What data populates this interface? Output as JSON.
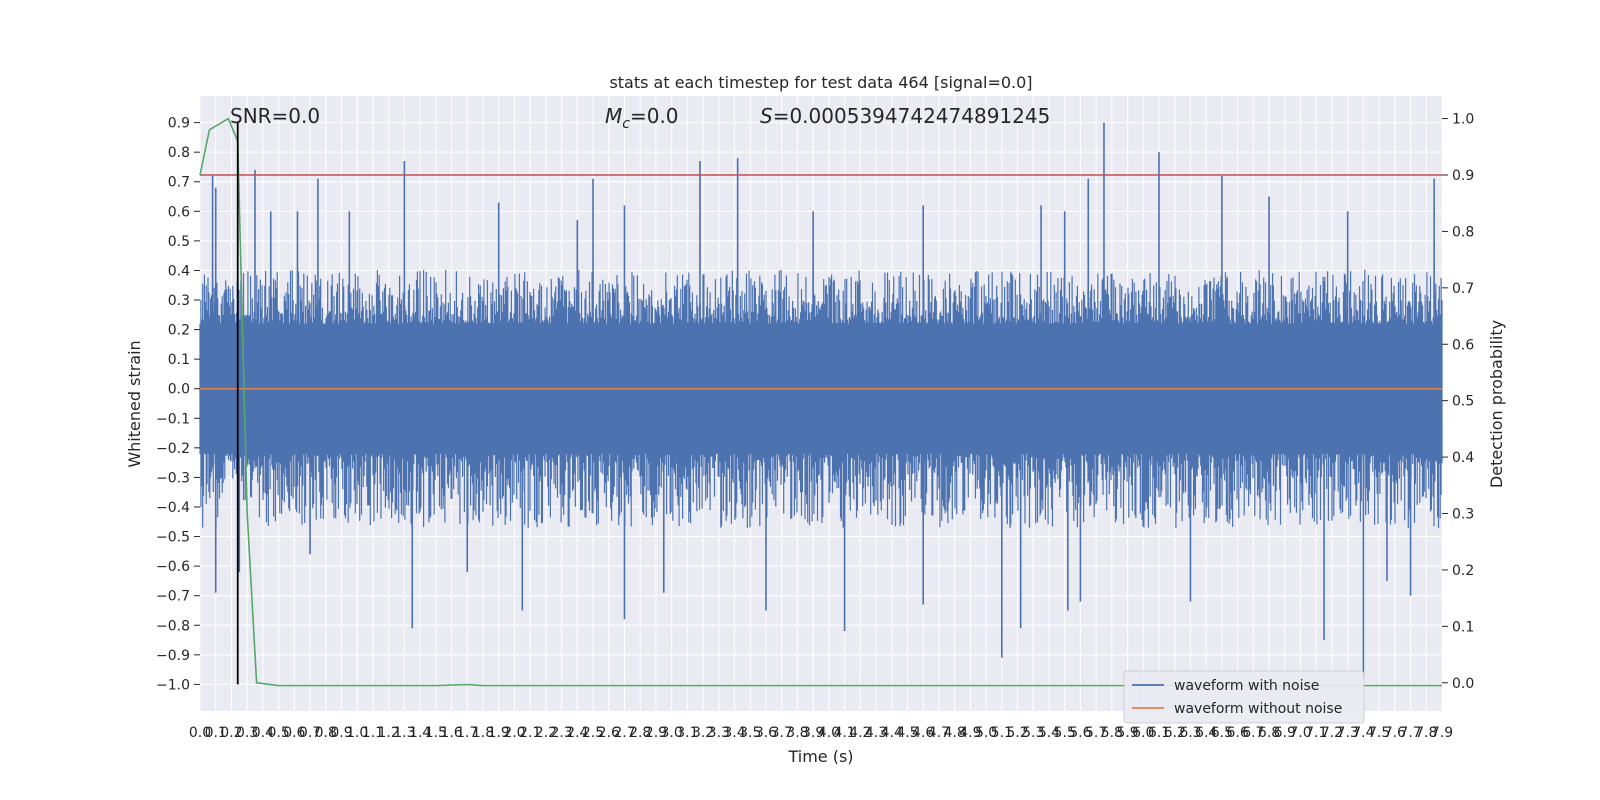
{
  "chart_data": {
    "type": "line",
    "title": "stats at each timestep for test data 464 [signal=0.0]",
    "xlabel": "Time (s)",
    "ylabel": "Whitened strain",
    "y2label": "Detection probability",
    "xlim": [
      0.0,
      7.9
    ],
    "ylim": [
      -1.09,
      0.99
    ],
    "y2lim": [
      -0.05,
      1.04
    ],
    "x_ticks": [
      0.0,
      0.1,
      0.2,
      0.3,
      0.4,
      0.5,
      0.6,
      0.7,
      0.8,
      0.9,
      1.0,
      1.1,
      1.2,
      1.3,
      1.4,
      1.5,
      1.6,
      1.7,
      1.8,
      1.9,
      2.0,
      2.1,
      2.2,
      2.3,
      2.4,
      2.5,
      2.6,
      2.7,
      2.8,
      2.9,
      3.0,
      3.1,
      3.2,
      3.3,
      3.4,
      3.5,
      3.6,
      3.7,
      3.8,
      3.9,
      4.0,
      4.1,
      4.2,
      4.3,
      4.4,
      4.5,
      4.6,
      4.7,
      4.8,
      4.9,
      5.0,
      5.1,
      5.2,
      5.3,
      5.4,
      5.5,
      5.6,
      5.7,
      5.8,
      5.9,
      6.0,
      6.1,
      6.2,
      6.3,
      6.4,
      6.5,
      6.6,
      6.7,
      6.8,
      6.9,
      7.0,
      7.1,
      7.2,
      7.3,
      7.4,
      7.5,
      7.6,
      7.7,
      7.8,
      7.9
    ],
    "y_ticks": [
      0.9,
      0.8,
      0.7,
      0.6,
      0.5,
      0.4,
      0.3,
      0.2,
      0.1,
      0.0,
      -0.1,
      -0.2,
      -0.3,
      -0.4,
      -0.5,
      -0.6,
      -0.7,
      -0.8,
      -0.9,
      -1.0
    ],
    "y2_ticks": [
      1.0,
      0.9,
      0.8,
      0.7,
      0.6,
      0.5,
      0.4,
      0.3,
      0.2,
      0.1,
      0.0
    ],
    "grid": true,
    "legend_position": "bottom-right",
    "series": [
      {
        "name": "waveform with noise",
        "color": "#4c72b0",
        "axis": "left",
        "core_amplitude": 0.22,
        "typical_peak": [
          0.35,
          -0.4
        ]
      },
      {
        "name": "waveform without noise",
        "color": "#dd8452",
        "axis": "left",
        "x": [
          0.0,
          7.9
        ],
        "y": [
          0.0,
          0.0
        ]
      },
      {
        "color": "#55a868",
        "axis": "right",
        "x": [
          0.0,
          0.06,
          0.12,
          0.18,
          0.24,
          0.3,
          0.36,
          0.5,
          1.0,
          1.5,
          1.7,
          1.8,
          2.5,
          3.5,
          4.5,
          5.5,
          6.5,
          7.5,
          7.9
        ],
        "y": [
          0.9,
          0.98,
          0.99,
          1.0,
          0.96,
          0.3,
          0.0,
          -0.005,
          -0.005,
          -0.005,
          -0.003,
          -0.005,
          -0.005,
          -0.005,
          -0.005,
          -0.005,
          -0.005,
          -0.005,
          -0.005
        ]
      }
    ],
    "threshold": {
      "value": 0.9,
      "axis": "right",
      "color": "#c44e52"
    },
    "marker_x": {
      "value": 0.24,
      "color": "#000000"
    },
    "spikes_up": [
      [
        0.08,
        0.72
      ],
      [
        0.1,
        0.68
      ],
      [
        0.35,
        0.74
      ],
      [
        0.45,
        0.6
      ],
      [
        0.62,
        0.6
      ],
      [
        0.75,
        0.71
      ],
      [
        0.95,
        0.6
      ],
      [
        1.3,
        0.77
      ],
      [
        1.9,
        0.63
      ],
      [
        2.4,
        0.57
      ],
      [
        2.5,
        0.71
      ],
      [
        2.7,
        0.62
      ],
      [
        3.18,
        0.77
      ],
      [
        3.42,
        0.78
      ],
      [
        3.9,
        0.6
      ],
      [
        4.6,
        0.62
      ],
      [
        5.35,
        0.62
      ],
      [
        5.5,
        0.6
      ],
      [
        5.65,
        0.71
      ],
      [
        5.75,
        0.9
      ],
      [
        6.1,
        0.8
      ],
      [
        6.5,
        0.72
      ],
      [
        6.8,
        0.65
      ],
      [
        7.3,
        0.6
      ],
      [
        7.85,
        0.71
      ]
    ],
    "spikes_down": [
      [
        0.1,
        -0.69
      ],
      [
        0.25,
        -0.62
      ],
      [
        0.7,
        -0.56
      ],
      [
        1.35,
        -0.81
      ],
      [
        1.7,
        -0.62
      ],
      [
        2.05,
        -0.75
      ],
      [
        2.7,
        -0.78
      ],
      [
        2.95,
        -0.69
      ],
      [
        3.6,
        -0.75
      ],
      [
        4.1,
        -0.82
      ],
      [
        4.6,
        -0.73
      ],
      [
        5.1,
        -0.91
      ],
      [
        5.22,
        -0.81
      ],
      [
        5.52,
        -0.75
      ],
      [
        5.6,
        -0.72
      ],
      [
        6.3,
        -0.72
      ],
      [
        7.15,
        -0.85
      ],
      [
        7.4,
        -0.98
      ],
      [
        7.55,
        -0.65
      ],
      [
        7.7,
        -0.7
      ]
    ],
    "annotations": [
      {
        "id": "snr",
        "text": "SNR=0.0"
      },
      {
        "id": "mc",
        "prefix": "M",
        "sub": "c",
        "suffix": "=0.0"
      },
      {
        "id": "s",
        "prefix": "S",
        "suffix": "=0.0005394742474891245"
      }
    ]
  }
}
